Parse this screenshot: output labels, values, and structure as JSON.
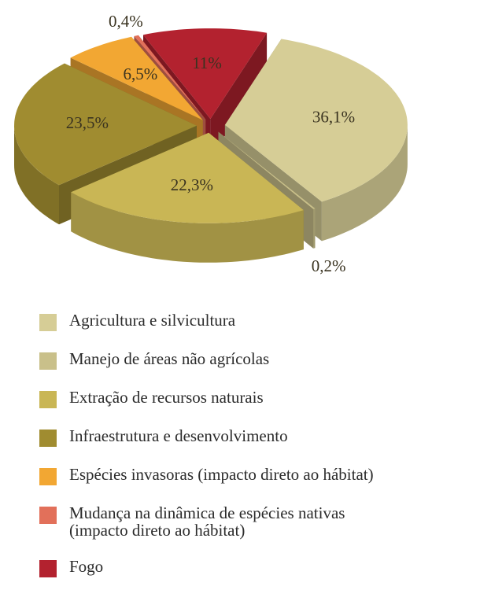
{
  "chart_data": {
    "type": "pie",
    "categories": [
      "Agricultura e silvicultura",
      "Manejo de áreas não agrícolas",
      "Extração de recursos naturais",
      "Infraestrutura e desenvolvimento",
      "Espécies invasoras (impacto direto ao hábitat)",
      "Mudança na dinâmica de espécies nativas\n(impacto direto ao hábitat)",
      "Fogo"
    ],
    "values": [
      36.1,
      0.2,
      22.3,
      23.5,
      6.5,
      0.4,
      11
    ],
    "value_labels": [
      "36,1%",
      "0,2%",
      "22,3%",
      "23,5%",
      "6,5%",
      "0,4%",
      "11%"
    ],
    "colors": [
      "#d6cd96",
      "#c9c08a",
      "#c9b655",
      "#a08c30",
      "#f2a733",
      "#e2705a",
      "#b3222f"
    ]
  }
}
